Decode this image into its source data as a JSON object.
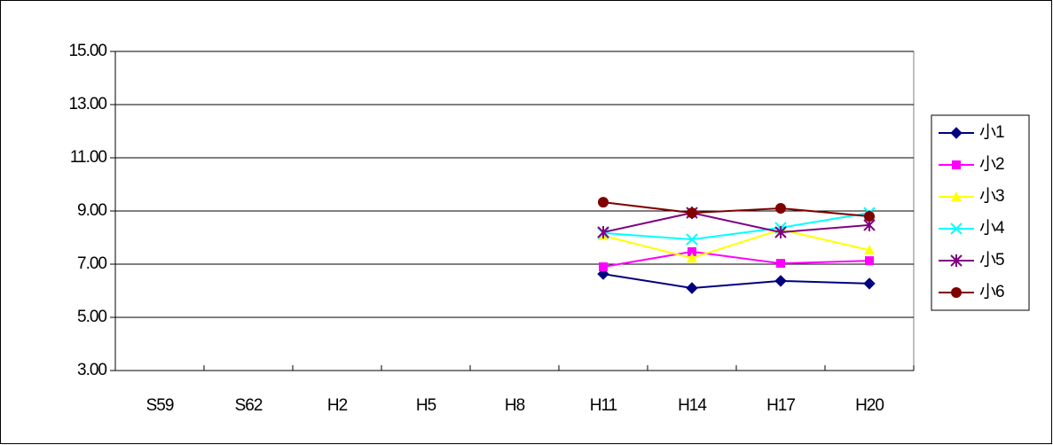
{
  "chart_data": {
    "type": "line",
    "categories": [
      "S59",
      "S62",
      "H2",
      "H5",
      "H8",
      "H11",
      "H14",
      "H17",
      "H20"
    ],
    "series": [
      {
        "name": "小1",
        "color": "#000080",
        "marker": "diamond",
        "values": [
          null,
          null,
          null,
          null,
          null,
          6.63,
          6.1,
          6.37,
          6.27
        ]
      },
      {
        "name": "小2",
        "color": "#ff00ff",
        "marker": "square",
        "values": [
          null,
          null,
          null,
          null,
          null,
          6.9,
          7.47,
          7.03,
          7.13
        ]
      },
      {
        "name": "小3",
        "color": "#ffff00",
        "marker": "triangle",
        "values": [
          null,
          null,
          null,
          null,
          null,
          8.07,
          7.23,
          8.3,
          7.53
        ]
      },
      {
        "name": "小4",
        "color": "#00ffff",
        "marker": "x",
        "values": [
          null,
          null,
          null,
          null,
          null,
          8.17,
          7.93,
          8.37,
          8.93
        ]
      },
      {
        "name": "小5",
        "color": "#800080",
        "marker": "star",
        "values": [
          null,
          null,
          null,
          null,
          null,
          8.2,
          8.93,
          8.2,
          8.47
        ]
      },
      {
        "name": "小6",
        "color": "#800000",
        "marker": "circle",
        "values": [
          null,
          null,
          null,
          null,
          null,
          9.33,
          8.93,
          9.1,
          8.8
        ]
      }
    ],
    "ylim": [
      3,
      15
    ],
    "yticks": [
      {
        "value": 3,
        "label": "3.00"
      },
      {
        "value": 5,
        "label": "5.00"
      },
      {
        "value": 7,
        "label": "7.00"
      },
      {
        "value": 9,
        "label": "9.00"
      },
      {
        "value": 11,
        "label": "11.00"
      },
      {
        "value": 13,
        "label": "13.00"
      },
      {
        "value": 15,
        "label": "15.00"
      }
    ],
    "grid": true,
    "legend": "right"
  }
}
